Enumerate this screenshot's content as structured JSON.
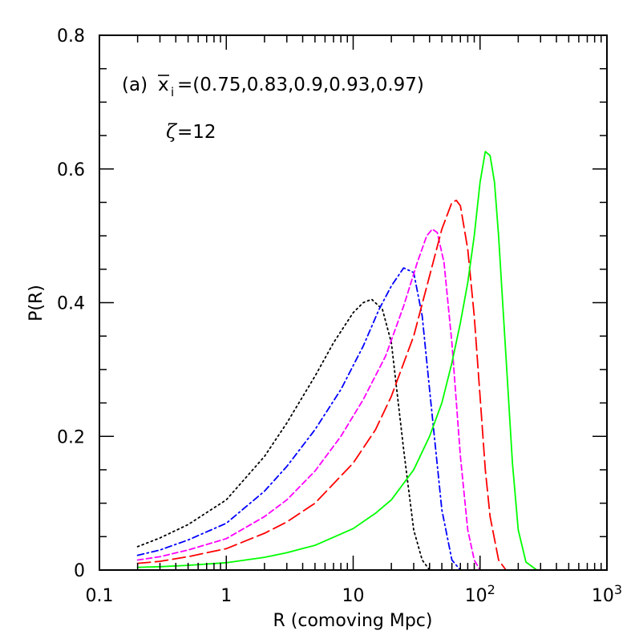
{
  "chart_data": {
    "type": "line",
    "xlabel": "R (comoving Mpc)",
    "ylabel": "P(R)",
    "xscale": "log",
    "xlim": [
      0.1,
      1000
    ],
    "ylim": [
      0,
      0.8
    ],
    "xticks": [
      {
        "value": 0.1,
        "label": "0.1"
      },
      {
        "value": 1,
        "label": "1"
      },
      {
        "value": 10,
        "label": "10"
      },
      {
        "value": 100,
        "label": "10",
        "sup": "2"
      },
      {
        "value": 1000,
        "label": "10",
        "sup": "3"
      }
    ],
    "yticks": [
      {
        "value": 0,
        "label": "0"
      },
      {
        "value": 0.2,
        "label": "0.2"
      },
      {
        "value": 0.4,
        "label": "0.4"
      },
      {
        "value": 0.6,
        "label": "0.6"
      },
      {
        "value": 0.8,
        "label": "0.8"
      }
    ],
    "grid": false,
    "annotations": {
      "panel": "(a)",
      "xbar_symbol": "x",
      "xbar_sub": "i",
      "xbar_values": "=(0.75,0.83,0.9,0.93,0.97)",
      "zeta_symbol": "ζ",
      "zeta_value": "=12"
    },
    "series": [
      {
        "color": "#000000",
        "dash": "dotted",
        "x": [
          0.2,
          0.3,
          0.5,
          1,
          2,
          3,
          5,
          7,
          10,
          12,
          14,
          17,
          20,
          25,
          30,
          35,
          40
        ],
        "y": [
          0.035,
          0.048,
          0.068,
          0.105,
          0.17,
          0.22,
          0.29,
          0.34,
          0.385,
          0.4,
          0.405,
          0.39,
          0.34,
          0.18,
          0.06,
          0.015,
          0.0
        ]
      },
      {
        "color": "#0000ff",
        "dash": "dashdot",
        "x": [
          0.2,
          0.3,
          0.5,
          1,
          2,
          3,
          5,
          8,
          12,
          16,
          20,
          25,
          30,
          35,
          40,
          50,
          60,
          70
        ],
        "y": [
          0.022,
          0.03,
          0.045,
          0.07,
          0.118,
          0.155,
          0.21,
          0.27,
          0.335,
          0.39,
          0.425,
          0.452,
          0.445,
          0.38,
          0.27,
          0.09,
          0.015,
          0.0
        ]
      },
      {
        "color": "#ff00ff",
        "dash": "short-dash",
        "x": [
          0.2,
          0.3,
          0.5,
          1,
          2,
          3,
          5,
          8,
          12,
          18,
          25,
          32,
          38,
          42,
          46,
          52,
          60,
          70,
          80,
          90,
          100
        ],
        "y": [
          0.015,
          0.02,
          0.03,
          0.047,
          0.08,
          0.105,
          0.148,
          0.2,
          0.255,
          0.32,
          0.395,
          0.46,
          0.5,
          0.51,
          0.505,
          0.46,
          0.34,
          0.17,
          0.06,
          0.015,
          0.0
        ]
      },
      {
        "color": "#ff0000",
        "dash": "long-dash",
        "x": [
          0.2,
          0.3,
          0.5,
          1,
          2,
          3,
          5,
          10,
          15,
          20,
          30,
          40,
          50,
          60,
          65,
          70,
          80,
          90,
          100,
          110,
          120,
          140,
          160
        ],
        "y": [
          0.01,
          0.013,
          0.02,
          0.032,
          0.055,
          0.072,
          0.1,
          0.16,
          0.21,
          0.26,
          0.35,
          0.44,
          0.51,
          0.55,
          0.553,
          0.545,
          0.48,
          0.38,
          0.26,
          0.15,
          0.08,
          0.015,
          0.0
        ]
      },
      {
        "color": "#00ff00",
        "dash": "solid",
        "x": [
          0.2,
          0.3,
          0.5,
          1,
          2,
          3,
          5,
          10,
          15,
          20,
          30,
          40,
          50,
          60,
          70,
          80,
          90,
          100,
          110,
          120,
          130,
          140,
          160,
          180,
          200,
          230,
          280
        ],
        "y": [
          0.004,
          0.005,
          0.007,
          0.011,
          0.019,
          0.026,
          0.037,
          0.062,
          0.085,
          0.105,
          0.15,
          0.2,
          0.25,
          0.31,
          0.37,
          0.43,
          0.5,
          0.58,
          0.626,
          0.62,
          0.58,
          0.5,
          0.32,
          0.16,
          0.06,
          0.012,
          0.0
        ]
      }
    ]
  }
}
